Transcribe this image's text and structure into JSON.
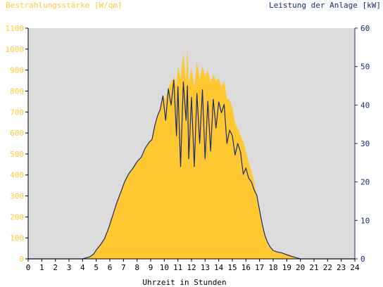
{
  "chart_data": {
    "type": "area",
    "ylabel_left": "Bestrahlungsstärke [W/qm]",
    "ylabel_right": "Leistung der Anlage [kW]",
    "xlabel": "Uhrzeit in Stunden",
    "xlim": [
      0,
      24
    ],
    "ylim_left": [
      0,
      1100
    ],
    "ylim_right": [
      0,
      60
    ],
    "x_ticks": [
      "0",
      "1",
      "2",
      "3",
      "4",
      "5",
      "6",
      "7",
      "8",
      "9",
      "10",
      "11",
      "12",
      "13",
      "14",
      "15",
      "16",
      "17",
      "18",
      "19",
      "20",
      "21",
      "22",
      "23",
      "24"
    ],
    "y_left_ticks": [
      "0",
      "100",
      "200",
      "300",
      "400",
      "500",
      "600",
      "700",
      "800",
      "900",
      "1000",
      "1100"
    ],
    "y_right_ticks": [
      "0",
      "10",
      "20",
      "30",
      "40",
      "50",
      "60"
    ],
    "grid": false,
    "colors": {
      "irradiance": "#ffc833",
      "power": "#1a2a6e",
      "left_axis_text": "#ffc833",
      "right_axis_text": "#1a2a6e",
      "plot_bg": "#dcdcdc"
    },
    "series": [
      {
        "name": "Bestrahlungsstärke [W/qm]",
        "axis": "left",
        "style": "area",
        "x": [
          0,
          4.0,
          4.5,
          4.8,
          5.0,
          5.3,
          5.6,
          5.9,
          6.2,
          6.5,
          6.8,
          7.1,
          7.4,
          7.7,
          8.0,
          8.3,
          8.6,
          8.9,
          9.1,
          9.3,
          9.5,
          9.7,
          9.9,
          10.1,
          10.3,
          10.5,
          10.7,
          10.9,
          11.0,
          11.2,
          11.4,
          11.6,
          11.7,
          11.8,
          12.0,
          12.2,
          12.4,
          12.6,
          12.8,
          13.0,
          13.2,
          13.4,
          13.6,
          13.8,
          14.0,
          14.2,
          14.4,
          14.6,
          14.8,
          15.0,
          15.2,
          15.4,
          15.6,
          15.8,
          16.0,
          16.2,
          16.4,
          16.6,
          16.8,
          17.0,
          17.2,
          17.4,
          17.6,
          17.8,
          18.0,
          18.3,
          18.6,
          18.9,
          19.2,
          19.5,
          19.8,
          20.0,
          20.2,
          20.4,
          24
        ],
        "y": [
          0,
          0,
          10,
          25,
          45,
          70,
          100,
          150,
          210,
          270,
          320,
          370,
          410,
          430,
          460,
          480,
          520,
          560,
          580,
          640,
          680,
          720,
          780,
          760,
          820,
          840,
          870,
          830,
          920,
          860,
          980,
          850,
          1010,
          840,
          910,
          820,
          940,
          860,
          920,
          870,
          900,
          840,
          880,
          850,
          860,
          820,
          850,
          760,
          760,
          720,
          650,
          620,
          590,
          560,
          510,
          460,
          420,
          370,
          300,
          230,
          160,
          110,
          70,
          50,
          40,
          30,
          30,
          25,
          20,
          12,
          5,
          0,
          0,
          0,
          0
        ]
      },
      {
        "name": "Leistung der Anlage [kW]",
        "axis": "right",
        "style": "line",
        "x": [
          0,
          4.0,
          4.5,
          4.8,
          5.0,
          5.3,
          5.6,
          5.9,
          6.2,
          6.5,
          6.8,
          7.1,
          7.4,
          7.7,
          8.0,
          8.3,
          8.6,
          8.9,
          9.1,
          9.3,
          9.5,
          9.7,
          9.9,
          10.1,
          10.3,
          10.5,
          10.7,
          10.9,
          11.0,
          11.2,
          11.4,
          11.6,
          11.7,
          11.8,
          12.0,
          12.2,
          12.4,
          12.6,
          12.8,
          13.0,
          13.2,
          13.4,
          13.6,
          13.8,
          14.0,
          14.2,
          14.4,
          14.6,
          14.8,
          15.0,
          15.2,
          15.4,
          15.6,
          15.8,
          16.0,
          16.2,
          16.4,
          16.6,
          16.8,
          17.0,
          17.2,
          17.4,
          17.6,
          17.8,
          18.0,
          18.3,
          18.6,
          18.9,
          19.2,
          19.5,
          19.8,
          20.0,
          20.2,
          20.4,
          24
        ],
        "y": [
          0,
          0,
          0.5,
          1.2,
          2.3,
          3.6,
          5.2,
          7.9,
          11.2,
          14.5,
          17.3,
          20.2,
          22.2,
          23.6,
          25.3,
          26.4,
          28.8,
          30.4,
          31.0,
          34.6,
          37.2,
          38.8,
          42.4,
          36.0,
          44.2,
          40.0,
          46.5,
          32.0,
          44.8,
          24.0,
          46.0,
          36.0,
          45.0,
          26.0,
          42.0,
          24.0,
          43.0,
          30.0,
          44.0,
          26.0,
          41.0,
          28.0,
          41.5,
          34.0,
          40.8,
          38.0,
          40.2,
          30.0,
          33.5,
          32.0,
          27.0,
          30.0,
          27.8,
          22.0,
          23.6,
          21.0,
          20.0,
          18.0,
          16.5,
          12.6,
          9.0,
          6.0,
          4.2,
          3.0,
          2.2,
          1.8,
          1.6,
          1.2,
          0.8,
          0.5,
          0.2,
          0,
          0,
          0,
          0
        ]
      }
    ]
  }
}
